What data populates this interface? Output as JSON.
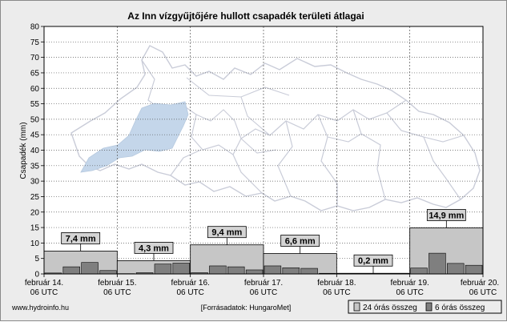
{
  "footer": {
    "website": "www.hydroinfo.hu",
    "source": "[Forrásadatok: HungaroMet]"
  },
  "colors": {
    "background": "#ececec",
    "plot_background": "#ffffff",
    "bar_24h": "#c6c6c6",
    "bar_6h": "#7f7f7f",
    "basin_fill": "#c4d6ea",
    "map_lines": "#c9ccd8"
  },
  "chart_data": {
    "type": "bar",
    "title": "Az Inn vízgyűjtőjére hullott csapadék területi átlagai",
    "ylabel": "Csapadék (mm)",
    "xlabel": "",
    "ylim": [
      0,
      80
    ],
    "yticks": [
      0,
      5,
      10,
      15,
      20,
      25,
      30,
      35,
      40,
      45,
      50,
      55,
      60,
      65,
      70,
      75,
      80
    ],
    "grid": true,
    "legend_position": "bottom-right",
    "x_ticks": [
      {
        "date": "február 14.",
        "time": "06 UTC"
      },
      {
        "date": "február 15.",
        "time": "06 UTC"
      },
      {
        "date": "február 16.",
        "time": "06 UTC"
      },
      {
        "date": "február 17.",
        "time": "06 UTC"
      },
      {
        "date": "február 18.",
        "time": "06 UTC"
      },
      {
        "date": "február 19.",
        "time": "06 UTC"
      },
      {
        "date": "február 20.",
        "time": "06 UTC"
      }
    ],
    "series": [
      {
        "name": "24 órás összeg",
        "color": "#c6c6c6",
        "values": [
          7.4,
          4.3,
          9.4,
          6.6,
          0.2,
          14.9
        ],
        "labels": [
          "7,4 mm",
          "4,3 mm",
          "9,4 mm",
          "6,6 mm",
          "0,2 mm",
          "14,9 mm"
        ]
      },
      {
        "name": "6 órás összeg",
        "color": "#7f7f7f",
        "values": [
          0.3,
          2.3,
          3.7,
          1.1,
          0.1,
          0.4,
          3.2,
          3.5,
          0.4,
          2.6,
          2.3,
          1.3,
          2.6,
          2.0,
          1.8,
          0.2,
          0.1,
          0.1,
          0.0,
          0.0,
          1.9,
          6.7,
          3.4,
          2.8
        ]
      }
    ]
  }
}
